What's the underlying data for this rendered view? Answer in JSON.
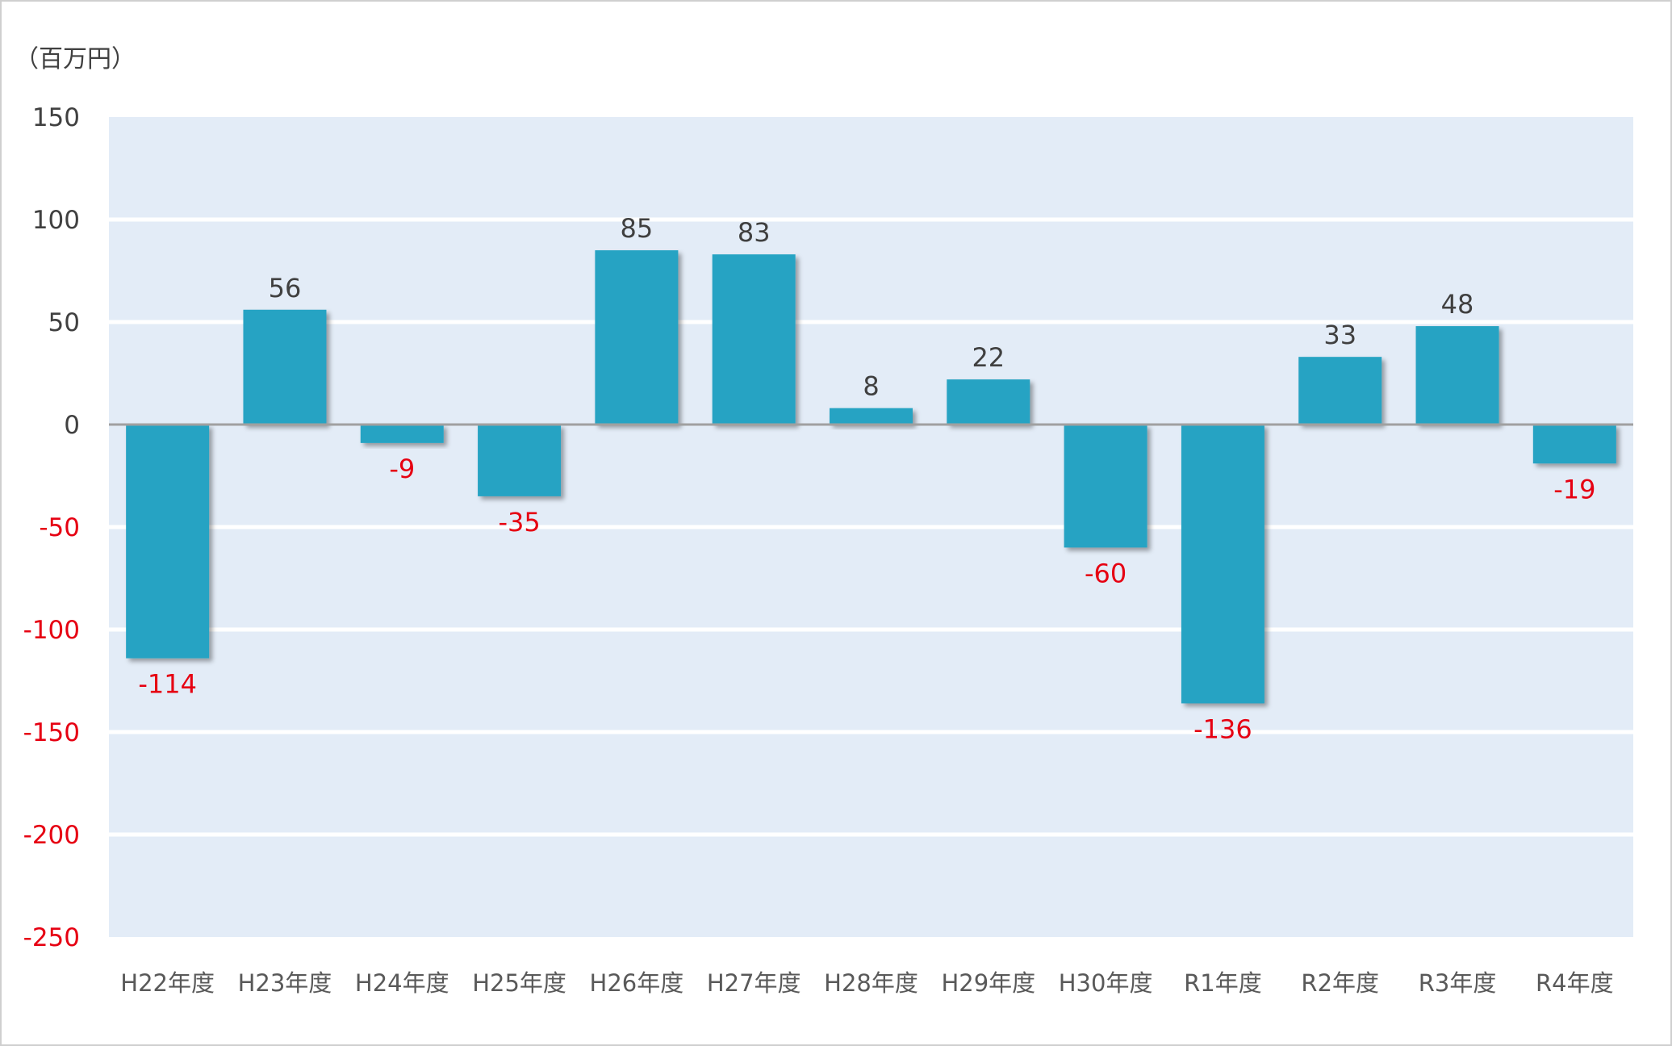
{
  "chart_data": {
    "type": "bar",
    "unit_label": "（百万円）",
    "categories": [
      "H22年度",
      "H23年度",
      "H24年度",
      "H25年度",
      "H26年度",
      "H27年度",
      "H28年度",
      "H29年度",
      "H30年度",
      "R1年度",
      "R2年度",
      "R3年度",
      "R4年度"
    ],
    "values": [
      -114,
      56,
      -9,
      -35,
      85,
      83,
      8,
      22,
      -60,
      -136,
      33,
      48,
      -19
    ],
    "ylim": [
      -250,
      150
    ],
    "yticks": [
      150,
      100,
      50,
      0,
      -50,
      -100,
      -150,
      -200,
      -250
    ],
    "grid": true,
    "colors": {
      "bar": "#26a3c3",
      "plot_background": "#e3ecf7",
      "gridline": "#ffffff",
      "zero_line": "#a0a0a0",
      "positive_text": "#404040",
      "negative_text": "#e60012"
    }
  }
}
